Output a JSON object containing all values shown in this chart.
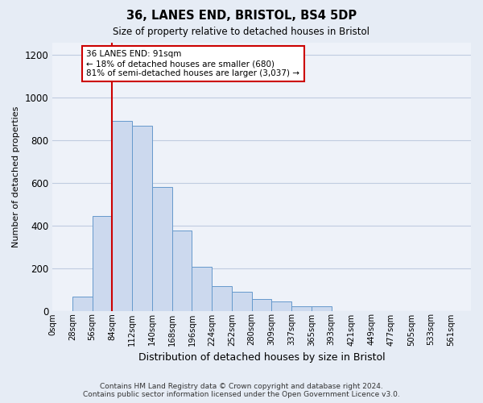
{
  "title": "36, LANES END, BRISTOL, BS4 5DP",
  "subtitle": "Size of property relative to detached houses in Bristol",
  "xlabel": "Distribution of detached houses by size in Bristol",
  "ylabel": "Number of detached properties",
  "bar_labels": [
    "0sqm",
    "28sqm",
    "56sqm",
    "84sqm",
    "112sqm",
    "140sqm",
    "168sqm",
    "196sqm",
    "224sqm",
    "252sqm",
    "280sqm",
    "309sqm",
    "337sqm",
    "365sqm",
    "393sqm",
    "421sqm",
    "449sqm",
    "477sqm",
    "505sqm",
    "533sqm",
    "561sqm"
  ],
  "bar_values": [
    0,
    65,
    445,
    890,
    870,
    580,
    375,
    205,
    115,
    90,
    55,
    45,
    20,
    20,
    0,
    0,
    0,
    0,
    0,
    0,
    0
  ],
  "bar_color": "#ccd9ee",
  "bar_edge_color": "#6699cc",
  "vline_x_bin": 3,
  "vline_color": "#cc0000",
  "annotation_line1": "36 LANES END: 91sqm",
  "annotation_line2": "← 18% of detached houses are smaller (680)",
  "annotation_line3": "81% of semi-detached houses are larger (3,037) →",
  "annotation_box_color": "#ffffff",
  "annotation_box_edge_color": "#cc0000",
  "ylim": [
    0,
    1260
  ],
  "yticks": [
    0,
    200,
    400,
    600,
    800,
    1000,
    1200
  ],
  "footer_line1": "Contains HM Land Registry data © Crown copyright and database right 2024.",
  "footer_line2": "Contains public sector information licensed under the Open Government Licence v3.0.",
  "bg_color": "#e6ecf5",
  "plot_bg_color": "#eef2f9",
  "grid_color": "#c0cce0"
}
